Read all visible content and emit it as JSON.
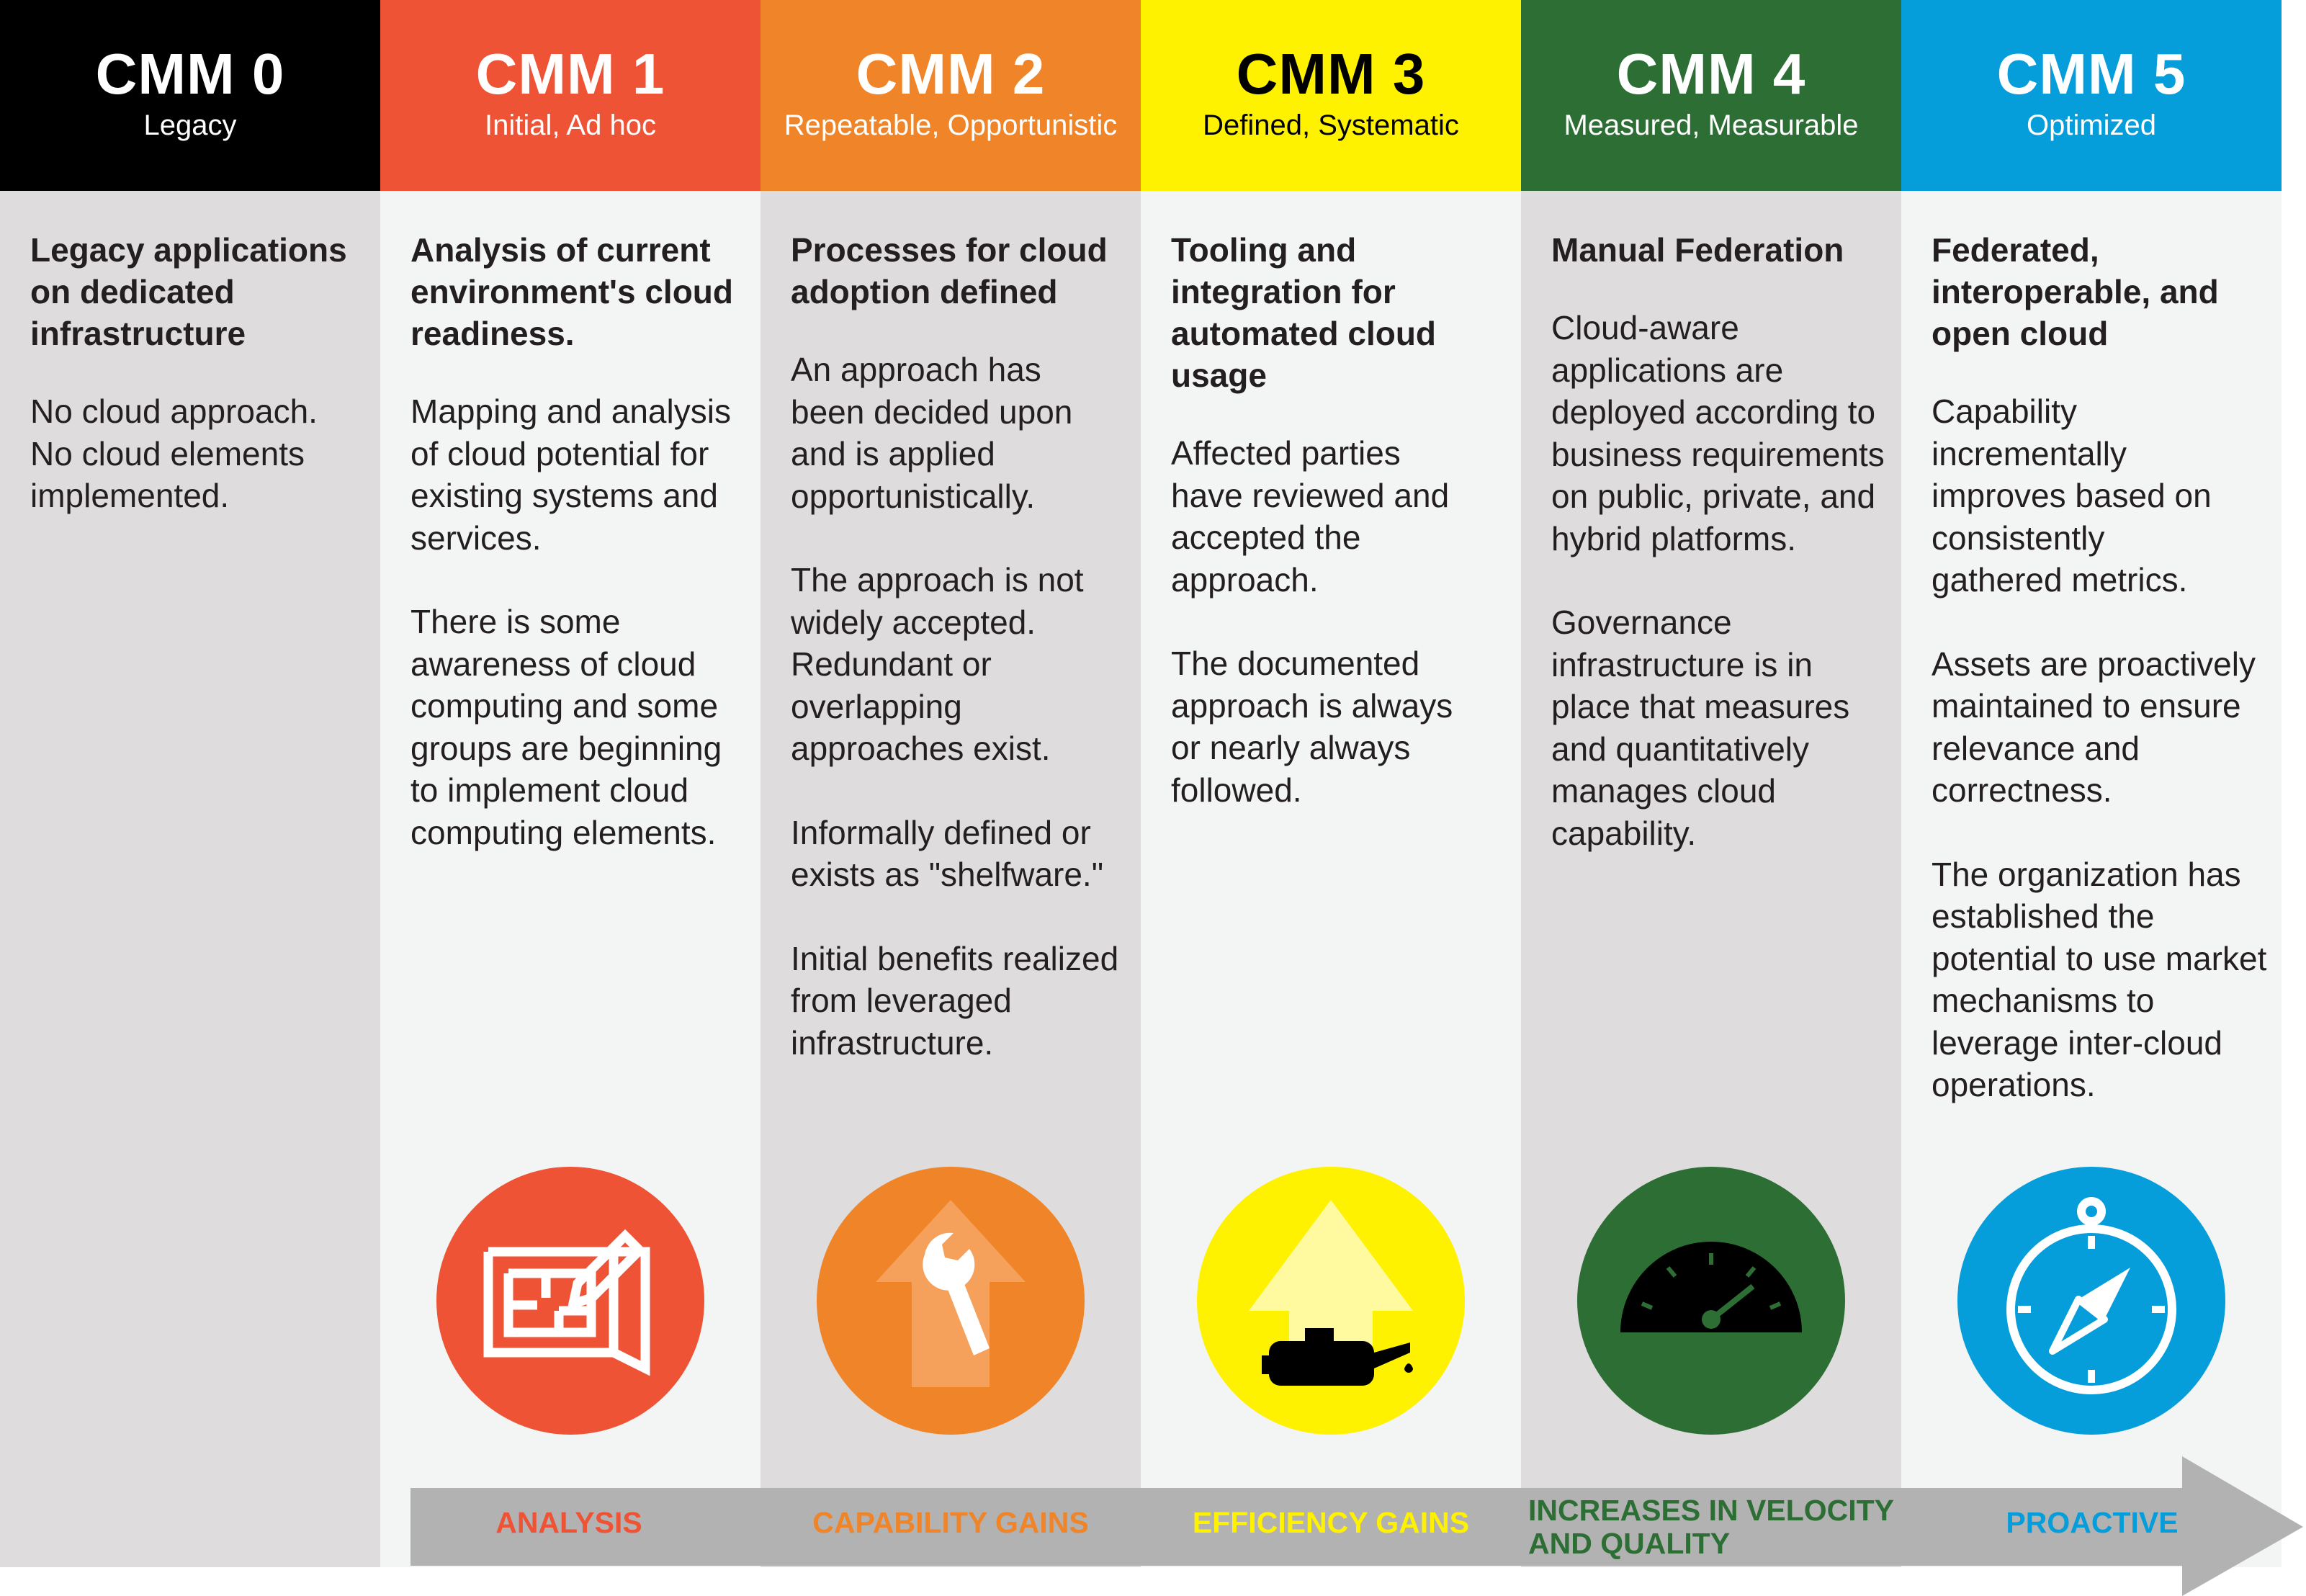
{
  "levels": [
    {
      "level": "CMM 0",
      "name": "Legacy",
      "color": "#000000",
      "heading": "Legacy applications on dedicated infrastructure",
      "paragraphs": [
        "No cloud approach. No cloud elements implemented."
      ]
    },
    {
      "level": "CMM 1",
      "name": "Initial, Ad hoc",
      "color": "#ee5336",
      "heading": "Analysis of current environment's cloud readiness.",
      "paragraphs": [
        "Mapping and analysis of cloud potential for existing systems and services.",
        "There is some awareness of cloud computing and some groups are beginning to implement cloud computing elements."
      ],
      "icon": "blueprint-pencil-icon"
    },
    {
      "level": "CMM 2",
      "name": "Repeatable, Opportunistic",
      "color": "#ef8428",
      "heading": "Processes for cloud adoption defined",
      "paragraphs": [
        "An approach has been decided upon and is applied opportunistically.",
        "The approach is not widely accepted. Redundant or overlapping approaches exist.",
        "Informally defined or exists as \"shelfware.\"",
        "Initial benefits realized from leveraged infrastructure."
      ],
      "icon": "wrench-arrow-icon"
    },
    {
      "level": "CMM 3",
      "name": "Defined, Systematic",
      "color": "#fff200",
      "heading": "Tooling and integration for automated cloud usage",
      "paragraphs": [
        "Affected parties have reviewed and accepted the approach.",
        "The documented approach is always or nearly always followed."
      ],
      "icon": "oil-can-arrow-icon"
    },
    {
      "level": "CMM 4",
      "name": "Measured, Measurable",
      "color": "#2d6e35",
      "heading": "Manual Federation",
      "paragraphs": [
        "Cloud-aware applications are deployed according to business requirements on public, private, and hybrid platforms.",
        "Governance infrastructure is in place that measures and quantitatively manages cloud capability."
      ],
      "icon": "speedometer-icon"
    },
    {
      "level": "CMM 5",
      "name": "Optimized",
      "color": "#069ddb",
      "heading": "Federated, interoperable, and open cloud",
      "paragraphs": [
        "Capability incrementally improves based on consistently gathered metrics.",
        "Assets are proactively maintained to ensure relevance and correctness.",
        "The organization has established the potential to use market mechanisms to leverage inter-cloud operations."
      ],
      "icon": "compass-icon"
    }
  ],
  "stages": [
    {
      "label": "ANALYSIS",
      "color": "#ee5336"
    },
    {
      "label": "CAPABILITY GAINS",
      "color": "#ef8428"
    },
    {
      "label": "EFFICIENCY GAINS",
      "color": "#fff200"
    },
    {
      "label": "INCREASES IN VELOCITY AND QUALITY",
      "color": "#2d6e35"
    },
    {
      "label": "PROACTIVE",
      "color": "#069ddb"
    }
  ],
  "arrow_color": "#b2b2b2"
}
